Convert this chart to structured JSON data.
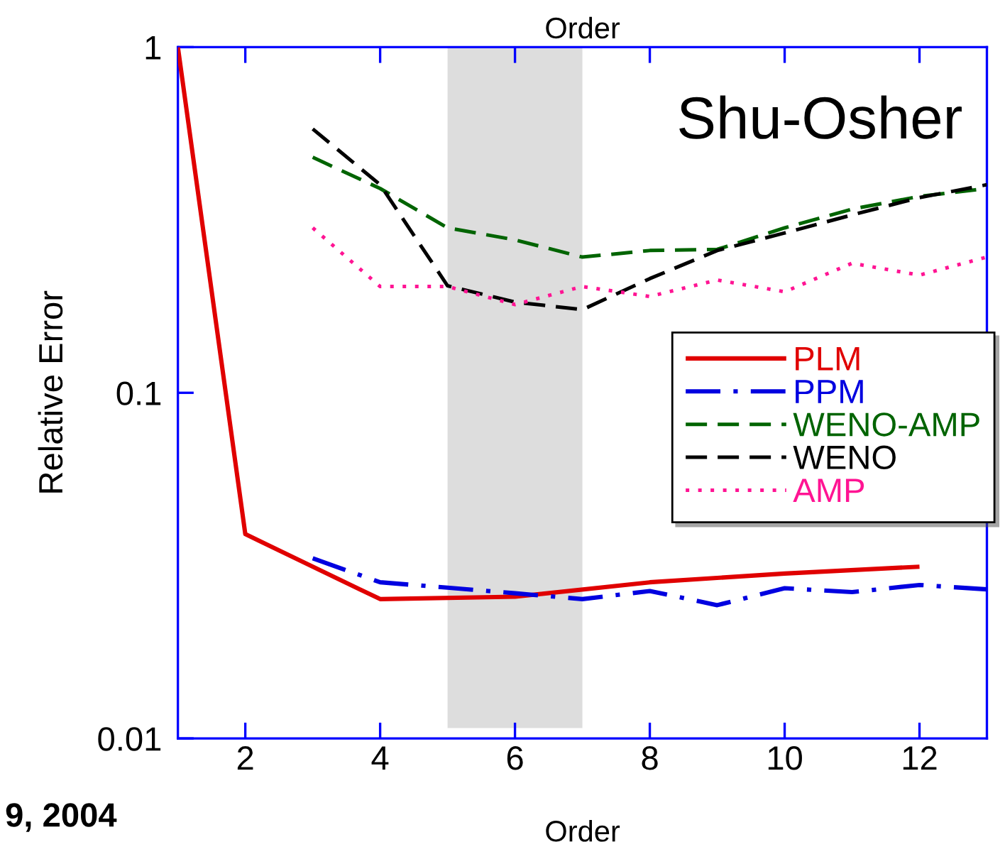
{
  "chart_data": {
    "type": "line",
    "xlabel": "Order",
    "ylabel": "Relative Error",
    "annotations": [
      "Shu-Osher",
      "9, 2004",
      "Order"
    ],
    "x": [
      3,
      4,
      5,
      6,
      7,
      8,
      9,
      10,
      11,
      12,
      13
    ],
    "xlim": [
      1,
      13
    ],
    "xticks": [
      2,
      4,
      6,
      8,
      10,
      12
    ],
    "log": "y",
    "ylim": [
      0.01,
      1
    ],
    "yticks": [
      {
        "value": 0.01,
        "label": "0.01"
      },
      {
        "value": 0.1,
        "label": "0.1"
      },
      {
        "value": 1,
        "label": "1"
      }
    ],
    "grid": false,
    "legend": "right",
    "marker": "none",
    "bands": [
      {
        "axis": "x",
        "from": 5,
        "to": 7,
        "color": "#dddddd"
      }
    ],
    "series": [
      {
        "name": "PLM",
        "color": "#e00000",
        "line_style": "solid",
        "x": [
          1,
          2,
          4,
          6,
          8,
          10,
          12
        ],
        "values": [
          1,
          0.039,
          0.0253,
          0.0257,
          0.0283,
          0.03,
          0.0314
        ]
      },
      {
        "name": "PPM",
        "color": "#0000e0",
        "line_style": "dashed",
        "values": [
          0.0332,
          0.0283,
          0.0273,
          0.0263,
          0.0253,
          0.0267,
          0.0243,
          0.0272,
          0.0265,
          0.0278,
          0.027
        ]
      },
      {
        "name": "WENO-AMP",
        "color": "#006400",
        "line_style": "dashed",
        "values": [
          0.48,
          0.39,
          0.3,
          0.277,
          0.247,
          0.258,
          0.26,
          0.3,
          0.34,
          0.37,
          0.39
        ]
      },
      {
        "name": "WENO",
        "color": "#000000",
        "line_style": "dashed",
        "values": [
          0.58,
          0.4,
          0.204,
          0.183,
          0.174,
          0.214,
          0.258,
          0.29,
          0.327,
          0.367,
          0.4
        ]
      },
      {
        "name": "AMP",
        "color": "#ff1493",
        "line_style": "dotted",
        "values": [
          0.3,
          0.203,
          0.203,
          0.18,
          0.203,
          0.19,
          0.212,
          0.196,
          0.237,
          0.219,
          0.247
        ]
      }
    ]
  }
}
